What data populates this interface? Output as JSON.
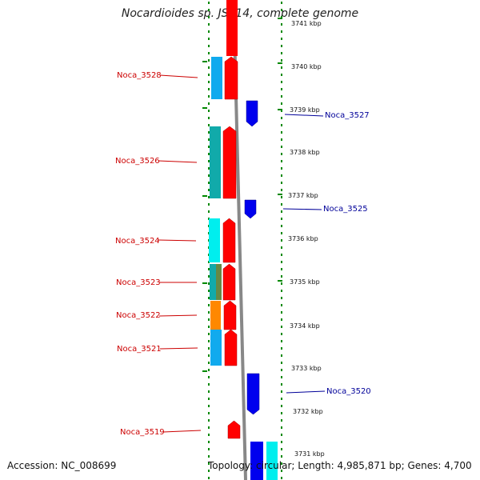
{
  "title": "Nocardioides sp. JS614, complete genome",
  "footer": {
    "accession": "Accession: NC_008699",
    "topology": "Topology: circular; Length: 4,985,871 bp; Genes: 4,700"
  },
  "colors": {
    "forward_gene": "#ff0000",
    "reverse_gene": "#0000ee",
    "backbone": "#888888",
    "dots": "#008800",
    "label_forward": "#cc0000",
    "label_reverse": "#000099"
  },
  "ruler": [
    {
      "label": "3741 kbp"
    },
    {
      "label": "3740 kbp"
    },
    {
      "label": "3739 kbp"
    },
    {
      "label": "3738 kbp"
    },
    {
      "label": "3737 kbp"
    },
    {
      "label": "3736 kbp"
    },
    {
      "label": "3735 kbp"
    },
    {
      "label": "3734 kbp"
    },
    {
      "label": "3733 kbp"
    },
    {
      "label": "3732 kbp"
    },
    {
      "label": "3731 kbp"
    }
  ],
  "genes": [
    {
      "label": "Noca_3528",
      "strand": "forward"
    },
    {
      "label": "Noca_3527",
      "strand": "reverse"
    },
    {
      "label": "Noca_3526",
      "strand": "forward"
    },
    {
      "label": "Noca_3525",
      "strand": "reverse"
    },
    {
      "label": "Noca_3524",
      "strand": "forward"
    },
    {
      "label": "Noca_3523",
      "strand": "forward"
    },
    {
      "label": "Noca_3522",
      "strand": "forward"
    },
    {
      "label": "Noca_3521",
      "strand": "forward"
    },
    {
      "label": "Noca_3520",
      "strand": "reverse"
    },
    {
      "label": "Noca_3519",
      "strand": "forward"
    }
  ]
}
